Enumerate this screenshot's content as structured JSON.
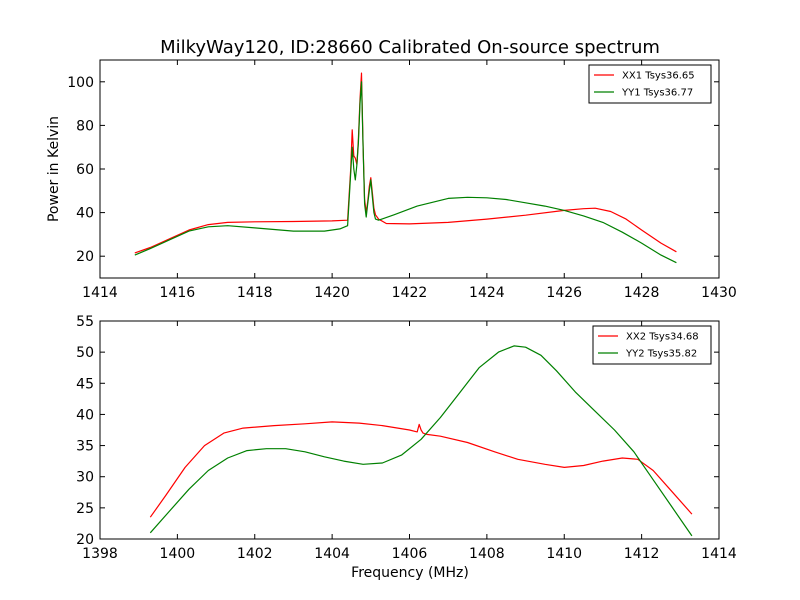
{
  "chart_data": [
    {
      "type": "line",
      "title": "MilkyWay120, ID:28660 Calibrated On-source spectrum",
      "xlabel": "",
      "ylabel": "Power in Kelvin",
      "xlim": [
        1414,
        1430
      ],
      "ylim": [
        10,
        110
      ],
      "xticks": [
        "1414",
        "1416",
        "1418",
        "1420",
        "1422",
        "1424",
        "1426",
        "1428",
        "1430"
      ],
      "yticks": [
        "20",
        "40",
        "60",
        "80",
        "100"
      ],
      "legend_position": "top-right",
      "grid": false,
      "series": [
        {
          "name": "XX1 Tsys36.65",
          "color": "#ff0000",
          "x": [
            1414.9,
            1415.3,
            1415.8,
            1416.3,
            1416.8,
            1417.3,
            1418.0,
            1419.0,
            1420.0,
            1420.4,
            1420.48,
            1420.52,
            1420.56,
            1420.6,
            1420.64,
            1420.68,
            1420.72,
            1420.76,
            1420.8,
            1420.84,
            1420.88,
            1420.92,
            1420.96,
            1421.0,
            1421.04,
            1421.08,
            1421.12,
            1421.2,
            1421.4,
            1422.0,
            1423.0,
            1424.0,
            1425.0,
            1426.0,
            1426.5,
            1426.8,
            1427.2,
            1427.6,
            1428.0,
            1428.5,
            1428.9
          ],
          "y": [
            21.5,
            24,
            28,
            32,
            34.5,
            35.5,
            35.8,
            35.9,
            36.2,
            36.5,
            60,
            78,
            66,
            65,
            62,
            74,
            92,
            104,
            70,
            46,
            40,
            45,
            52,
            56,
            49,
            42,
            39,
            37,
            35,
            34.8,
            35.5,
            37,
            38.8,
            41,
            41.8,
            42,
            40.5,
            37,
            32,
            26,
            22
          ]
        },
        {
          "name": "YY1 Tsys36.77",
          "color": "#008000",
          "x": [
            1414.9,
            1415.3,
            1415.8,
            1416.3,
            1416.8,
            1417.3,
            1418.0,
            1419.0,
            1419.8,
            1420.2,
            1420.4,
            1420.48,
            1420.52,
            1420.56,
            1420.6,
            1420.64,
            1420.68,
            1420.72,
            1420.76,
            1420.8,
            1420.84,
            1420.88,
            1420.92,
            1420.96,
            1421.0,
            1421.04,
            1421.08,
            1421.12,
            1421.2,
            1421.6,
            1422.2,
            1423.0,
            1423.5,
            1424.0,
            1424.5,
            1425.0,
            1425.5,
            1426.0,
            1426.5,
            1427.0,
            1427.5,
            1428.0,
            1428.5,
            1428.9
          ],
          "y": [
            20.5,
            23.5,
            27.5,
            31.5,
            33.5,
            34,
            33,
            31.5,
            31.5,
            32.5,
            34,
            58,
            70,
            60,
            55,
            62,
            72,
            90,
            100,
            70,
            44,
            38,
            44,
            50,
            55,
            47,
            40,
            37,
            36.5,
            39,
            43,
            46.5,
            47,
            46.8,
            46,
            44.5,
            43,
            41,
            38.5,
            35.5,
            31,
            26,
            20.5,
            17
          ]
        }
      ]
    },
    {
      "type": "line",
      "title": "",
      "xlabel": "Frequency (MHz)",
      "ylabel": "",
      "xlim": [
        1398,
        1414
      ],
      "ylim": [
        20,
        55
      ],
      "xticks": [
        "1398",
        "1400",
        "1402",
        "1404",
        "1406",
        "1408",
        "1410",
        "1412",
        "1414"
      ],
      "yticks": [
        "20",
        "25",
        "30",
        "35",
        "40",
        "45",
        "50",
        "55"
      ],
      "legend_position": "top-right",
      "grid": false,
      "series": [
        {
          "name": "XX2 Tsys34.68",
          "color": "#ff0000",
          "x": [
            1399.3,
            1399.7,
            1400.2,
            1400.7,
            1401.2,
            1401.7,
            1402.5,
            1403.3,
            1404.0,
            1404.7,
            1405.3,
            1406.0,
            1406.2,
            1406.25,
            1406.3,
            1406.35,
            1406.45,
            1406.8,
            1407.5,
            1408.2,
            1408.8,
            1409.5,
            1410.0,
            1410.5,
            1411.0,
            1411.5,
            1411.9,
            1412.3,
            1412.8,
            1413.3
          ],
          "y": [
            23.5,
            27,
            31.5,
            35,
            37,
            37.8,
            38.2,
            38.5,
            38.8,
            38.6,
            38.2,
            37.5,
            37.2,
            38.4,
            37.5,
            37,
            36.8,
            36.5,
            35.5,
            34,
            32.8,
            32,
            31.5,
            31.8,
            32.5,
            33,
            32.8,
            31,
            27.5,
            24
          ]
        },
        {
          "name": "YY2 Tsys35.82",
          "color": "#008000",
          "x": [
            1399.3,
            1399.8,
            1400.3,
            1400.8,
            1401.3,
            1401.8,
            1402.3,
            1402.8,
            1403.3,
            1403.8,
            1404.3,
            1404.8,
            1405.3,
            1405.8,
            1406.3,
            1406.8,
            1407.3,
            1407.8,
            1408.3,
            1408.7,
            1409.0,
            1409.4,
            1409.8,
            1410.3,
            1410.8,
            1411.3,
            1411.8,
            1412.3,
            1412.8,
            1413.3
          ],
          "y": [
            21,
            24.5,
            28,
            31,
            33,
            34.2,
            34.5,
            34.5,
            34,
            33.2,
            32.5,
            32,
            32.2,
            33.5,
            36,
            39.5,
            43.5,
            47.5,
            50,
            51,
            50.8,
            49.5,
            47,
            43.5,
            40.5,
            37.5,
            34,
            29.5,
            25,
            20.5
          ]
        }
      ]
    }
  ]
}
